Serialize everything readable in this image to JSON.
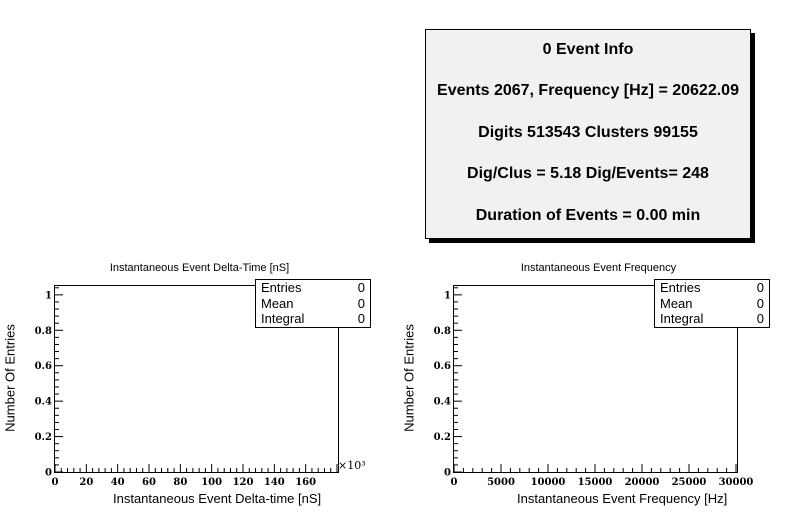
{
  "info_box": {
    "title": "0 Event Info",
    "line1": "Events 2067, Frequency [Hz] = 20622.09",
    "line2": "Digits 513543 Clusters 99155",
    "line3": "Dig/Clus = 5.18 Dig/Events= 248",
    "line4": "Duration of Events = 0.00 min"
  },
  "chart_data": [
    {
      "type": "bar",
      "title": "Instantaneous Event Delta-Time [nS]",
      "xlabel": "Instantaneous Event Delta-time [nS]",
      "ylabel": "Number Of Entries",
      "xlim": [
        0,
        180
      ],
      "ylim": [
        0,
        1.05
      ],
      "x_multiplier": "×10³",
      "x_ticks": [
        0,
        20,
        40,
        60,
        80,
        100,
        120,
        140,
        160
      ],
      "y_ticks": [
        0,
        0.2,
        0.4,
        0.6,
        0.8,
        1
      ],
      "values": [],
      "stats": {
        "entries_label": "Entries",
        "entries": "0",
        "mean_label": "Mean",
        "mean": "0",
        "integral_label": "Integral",
        "integral": "0"
      }
    },
    {
      "type": "bar",
      "title": "Instantaneous Event Frequency",
      "xlabel": "Instantaneous Event Frequency [Hz]",
      "ylabel": "Number Of Entries",
      "xlim": [
        0,
        30000
      ],
      "ylim": [
        0,
        1.05
      ],
      "x_ticks": [
        0,
        5000,
        10000,
        15000,
        20000,
        25000,
        30000
      ],
      "y_ticks": [
        0,
        0.2,
        0.4,
        0.6,
        0.8,
        1
      ],
      "values": [],
      "stats": {
        "entries_label": "Entries",
        "entries": "0",
        "mean_label": "Mean",
        "mean": "0",
        "integral_label": "Integral",
        "integral": "0"
      }
    }
  ]
}
